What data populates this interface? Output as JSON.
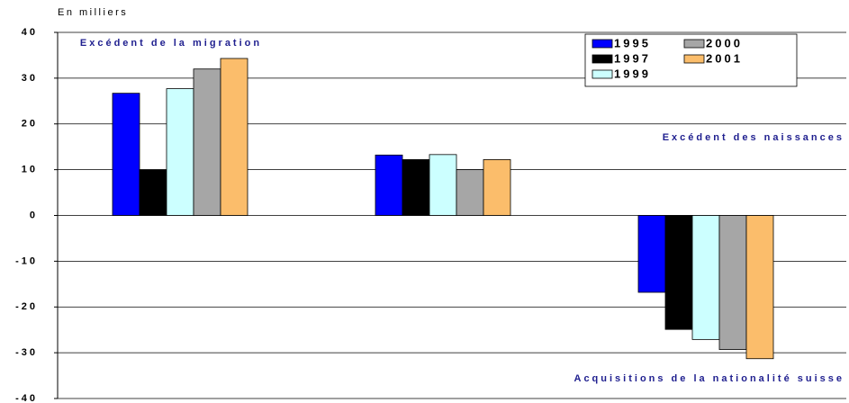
{
  "chart_data": {
    "type": "bar",
    "y_axis_label": "En milliers",
    "categories": [
      "Excédent de la migration",
      "Excédent des naissances",
      "Acquisitions de la nationalité suisse"
    ],
    "series": [
      {
        "name": "1995",
        "color": "#0000ff",
        "values": [
          26.7,
          13.2,
          -16.8
        ]
      },
      {
        "name": "1997",
        "color": "#000000",
        "values": [
          10,
          12.2,
          -24.9
        ]
      },
      {
        "name": "1999",
        "color": "#ccffff",
        "values": [
          27.7,
          13.3,
          -27.1
        ]
      },
      {
        "name": "2000",
        "color": "#a6a6a6",
        "values": [
          32,
          10,
          -29.3
        ]
      },
      {
        "name": "2001",
        "color": "#fbbd6b",
        "values": [
          34.3,
          12.2,
          -31.3
        ]
      }
    ],
    "ylim": [
      -40,
      40
    ],
    "yticks": [
      -40,
      -30,
      -20,
      -10,
      0,
      10,
      20,
      30,
      40
    ],
    "grid": true,
    "legend": "top-right"
  }
}
